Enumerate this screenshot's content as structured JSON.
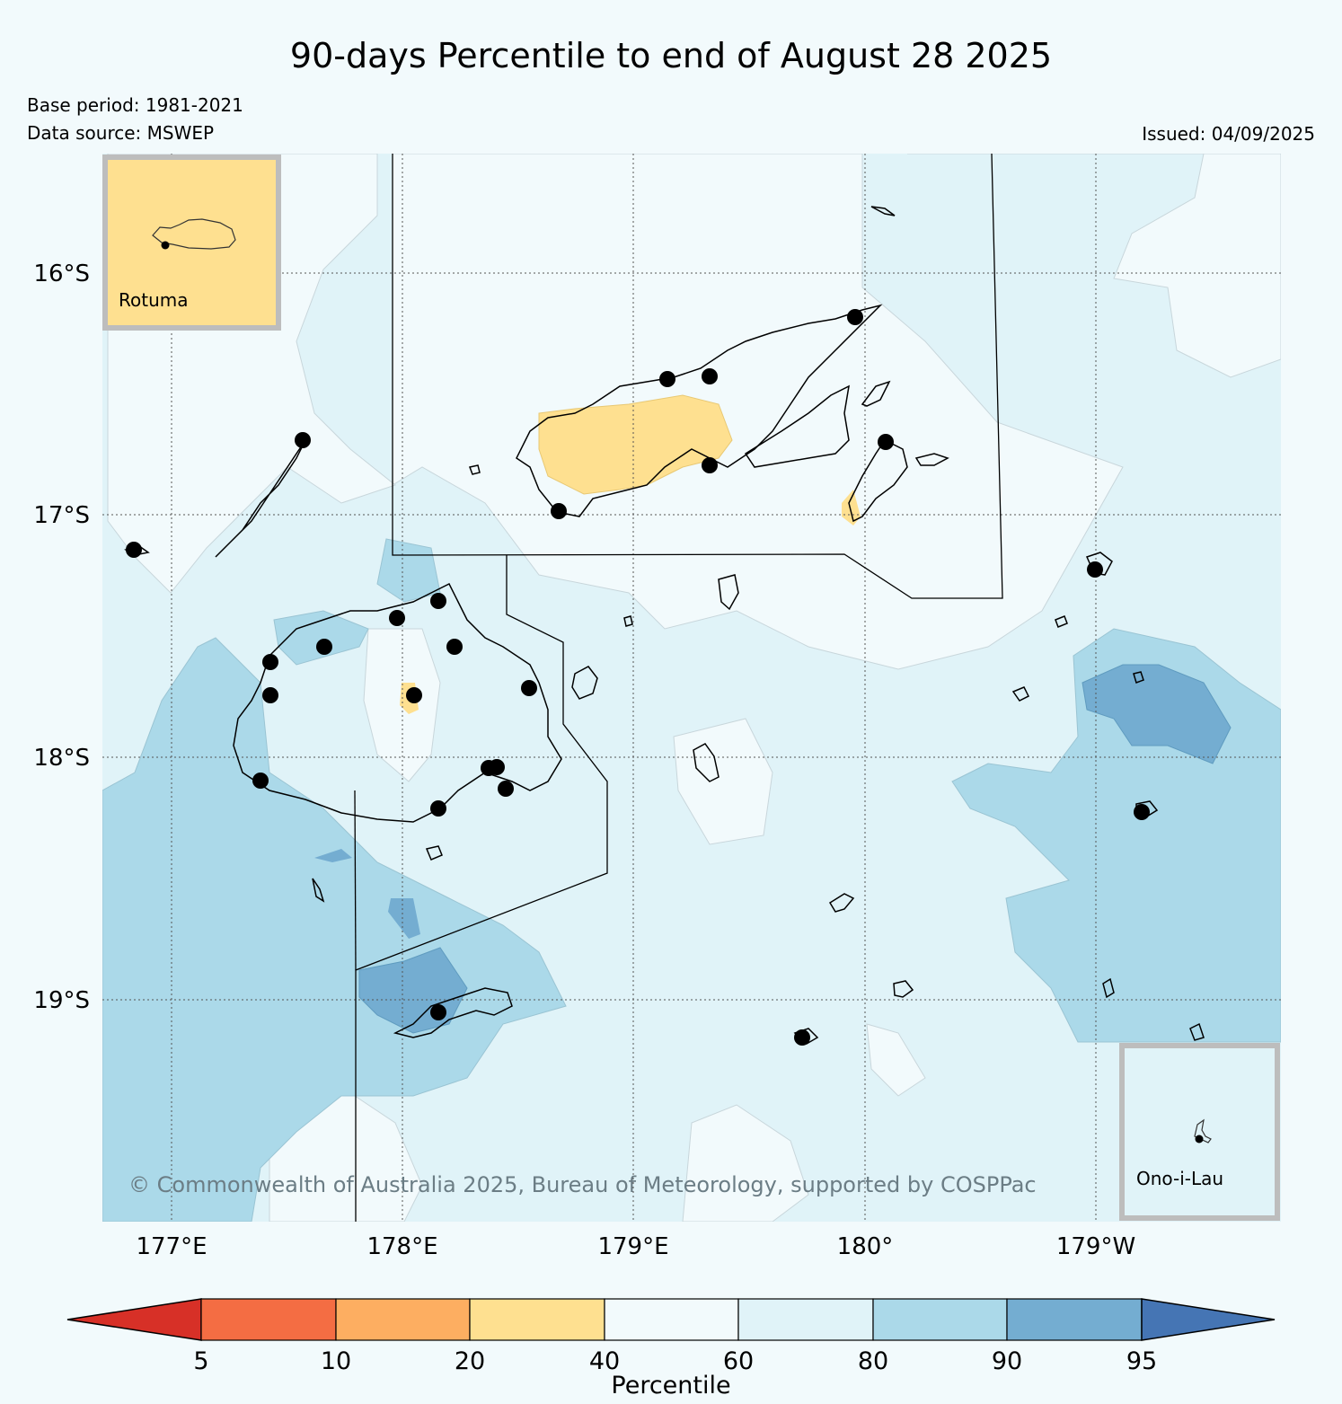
{
  "title": "90-days Percentile to end of August 28 2025",
  "meta": {
    "base_period": "Base period: 1981-2021",
    "data_source": "Data source: MSWEP",
    "issued": "Issued: 04/09/2025"
  },
  "map": {
    "lat_ticks": [
      "16°S",
      "17°S",
      "18°S",
      "19°S"
    ],
    "lon_ticks": [
      "177°E",
      "178°E",
      "179°E",
      "180°",
      "179°W"
    ],
    "copyright": "© Commonwealth of Australia 2025, Bureau of Meteorology, supported by COSPPac",
    "insets": [
      {
        "name": "Rotuma",
        "percentile_class": "20-40"
      },
      {
        "name": "Ono-i-Lau",
        "percentile_class": "60-80"
      }
    ]
  },
  "colorbar": {
    "label": "Percentile",
    "ticks": [
      "5",
      "10",
      "20",
      "40",
      "60",
      "80",
      "90",
      "95"
    ],
    "colors": {
      "below_5": "#d73027",
      "5_10": "#f46d43",
      "10_20": "#fdae61",
      "20_40": "#fee090",
      "40_60": "#f2fafc",
      "60_80": "#e0f3f8",
      "80_90": "#abd9e9",
      "90_95": "#74add1",
      "above_95": "#4575b4"
    }
  }
}
